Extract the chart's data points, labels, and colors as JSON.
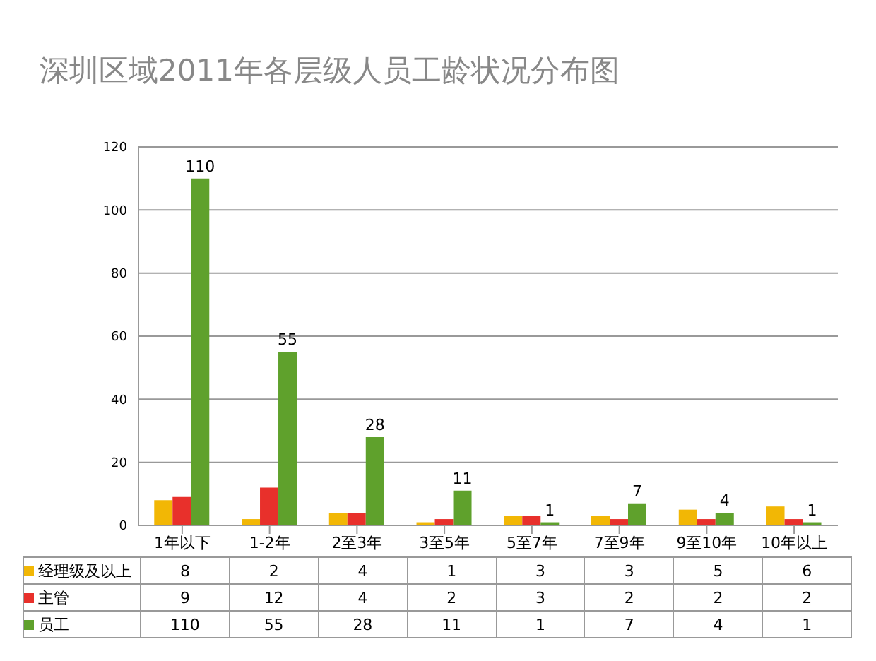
{
  "chart_data": {
    "type": "bar",
    "title": "深圳区域2011年各层级人员工龄状况分布图",
    "categories": [
      "1年以下",
      "1-2年",
      "2至3年",
      "3至5年",
      "5至7年",
      "7至9年",
      "9至10年",
      "10年以上"
    ],
    "series": [
      {
        "name": "经理级及以上",
        "color": "#f2b705",
        "values": [
          8,
          2,
          4,
          1,
          3,
          3,
          5,
          6
        ]
      },
      {
        "name": "主管",
        "color": "#e8302b",
        "values": [
          9,
          12,
          4,
          2,
          3,
          2,
          2,
          2
        ]
      },
      {
        "name": "员工",
        "color": "#5fa12c",
        "values": [
          110,
          55,
          28,
          11,
          1,
          7,
          4,
          1
        ],
        "value_labels": [
          "110",
          "55",
          "28",
          "11",
          "1",
          "7",
          "4",
          "1"
        ]
      }
    ],
    "ylim": [
      0,
      120
    ],
    "yticks": [
      0,
      20,
      40,
      60,
      80,
      100,
      120
    ],
    "grid": "y",
    "legend": "bottom left",
    "data_labels": true
  }
}
